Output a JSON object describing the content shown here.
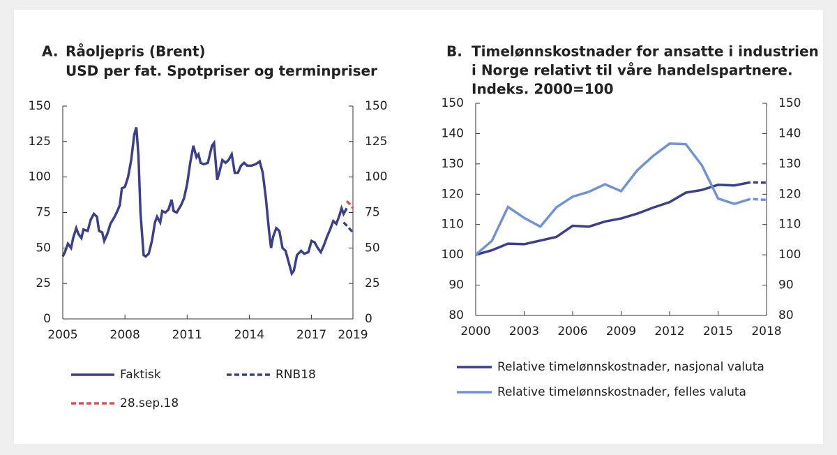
{
  "chart_data": [
    {
      "type": "line",
      "label": "A.",
      "title": [
        "Råoljepris (Brent)",
        "USD per fat. Spotpriser og terminpriser"
      ],
      "xlim": [
        2005,
        2019
      ],
      "xticks": [
        2005,
        2008,
        2011,
        2014,
        2017,
        2019
      ],
      "ylim": [
        0,
        150
      ],
      "yticks": [
        0,
        25,
        50,
        75,
        100,
        125,
        150
      ],
      "y2lim": [
        0,
        150
      ],
      "y2ticks": [
        0,
        25,
        50,
        75,
        100,
        125,
        150
      ],
      "series": [
        {
          "name": "Faktisk",
          "color": "#3b3f8c",
          "dashed": false,
          "x": [
            2005.0,
            2005.1,
            2005.25,
            2005.4,
            2005.5,
            2005.65,
            2005.75,
            2005.9,
            2006.0,
            2006.2,
            2006.35,
            2006.5,
            2006.65,
            2006.75,
            2006.9,
            2007.0,
            2007.15,
            2007.3,
            2007.5,
            2007.6,
            2007.75,
            2007.85,
            2008.0,
            2008.15,
            2008.3,
            2008.45,
            2008.55,
            2008.65,
            2008.75,
            2008.9,
            2009.0,
            2009.15,
            2009.3,
            2009.45,
            2009.55,
            2009.7,
            2009.8,
            2009.95,
            2010.1,
            2010.25,
            2010.35,
            2010.5,
            2010.7,
            2010.85,
            2011.0,
            2011.15,
            2011.3,
            2011.45,
            2011.55,
            2011.65,
            2011.8,
            2012.0,
            2012.2,
            2012.3,
            2012.45,
            2012.55,
            2012.7,
            2012.85,
            2013.0,
            2013.15,
            2013.3,
            2013.45,
            2013.6,
            2013.75,
            2013.9,
            2014.1,
            2014.3,
            2014.5,
            2014.65,
            2014.8,
            2014.95,
            2015.05,
            2015.15,
            2015.3,
            2015.45,
            2015.6,
            2015.75,
            2015.9,
            2016.05,
            2016.15,
            2016.3,
            2016.5,
            2016.65,
            2016.85,
            2017.0,
            2017.15,
            2017.3,
            2017.45,
            2017.6,
            2017.75,
            2017.9,
            2018.05,
            2018.2,
            2018.35,
            2018.45,
            2018.55,
            2018.7
          ],
          "values": [
            44,
            47,
            53,
            50,
            57,
            64,
            60,
            57,
            63,
            62,
            70,
            74,
            72,
            62,
            61,
            55,
            60,
            67,
            72,
            75,
            80,
            92,
            93,
            100,
            112,
            130,
            135,
            115,
            75,
            45,
            44,
            46,
            55,
            68,
            72,
            68,
            76,
            75,
            77,
            84,
            76,
            75,
            80,
            85,
            95,
            110,
            122,
            114,
            116,
            110,
            109,
            110,
            122,
            124,
            98,
            103,
            112,
            110,
            112,
            116,
            103,
            103,
            108,
            110,
            108,
            108,
            109,
            111,
            103,
            85,
            62,
            50,
            58,
            64,
            62,
            50,
            48,
            40,
            32,
            34,
            45,
            48,
            46,
            47,
            55,
            54,
            50,
            47,
            52,
            58,
            63,
            69,
            67,
            73,
            78,
            74,
            78
          ]
        },
        {
          "name": "RNB18",
          "color": "#3b3f8c",
          "dashed": true,
          "x": [
            2018.55,
            2018.75,
            2019.0
          ],
          "values": [
            68,
            65,
            61
          ]
        },
        {
          "name": "28.sep.18",
          "color": "#d9505e",
          "dashed": true,
          "x": [
            2018.7,
            2018.85,
            2019.0
          ],
          "values": [
            83,
            81,
            78
          ]
        }
      ]
    },
    {
      "type": "line",
      "label": "B.",
      "title": [
        "Timelønnskostnader for ansatte i industrien",
        "i Norge relativt til våre handelspartnere.",
        "Indeks. 2000=100"
      ],
      "xlim": [
        2000,
        2018
      ],
      "xticks": [
        2000,
        2003,
        2006,
        2009,
        2012,
        2015,
        2018
      ],
      "ylim": [
        80,
        150
      ],
      "yticks": [
        80,
        90,
        100,
        110,
        120,
        130,
        140,
        150
      ],
      "y2lim": [
        80,
        150
      ],
      "y2ticks": [
        80,
        90,
        100,
        110,
        120,
        130,
        140,
        150
      ],
      "x": [
        2000,
        2001,
        2002,
        2003,
        2004,
        2005,
        2006,
        2007,
        2008,
        2009,
        2010,
        2011,
        2012,
        2013,
        2014,
        2015,
        2016,
        2017,
        2018
      ],
      "series": [
        {
          "name": "Relative timelønnskostnader, nasjonal valuta",
          "color": "#3b3f8c",
          "dashed_from": 2017,
          "values": [
            100,
            101.5,
            103.7,
            103.5,
            104.7,
            105.9,
            109.6,
            109.3,
            111,
            112,
            113.6,
            115.6,
            117.4,
            120.5,
            121.4,
            123.1,
            122.9,
            123.9,
            123.8
          ]
        },
        {
          "name": "Relative timelønnskostnader, felles valuta",
          "color": "#6f93d4",
          "dashed_from": 2017,
          "values": [
            100,
            104.6,
            115.8,
            112.2,
            109.3,
            115.7,
            119.2,
            120.8,
            123.3,
            121,
            127.9,
            132.7,
            136.7,
            136.5,
            129.5,
            118.6,
            116.8,
            118.4,
            118.1
          ]
        }
      ]
    }
  ]
}
